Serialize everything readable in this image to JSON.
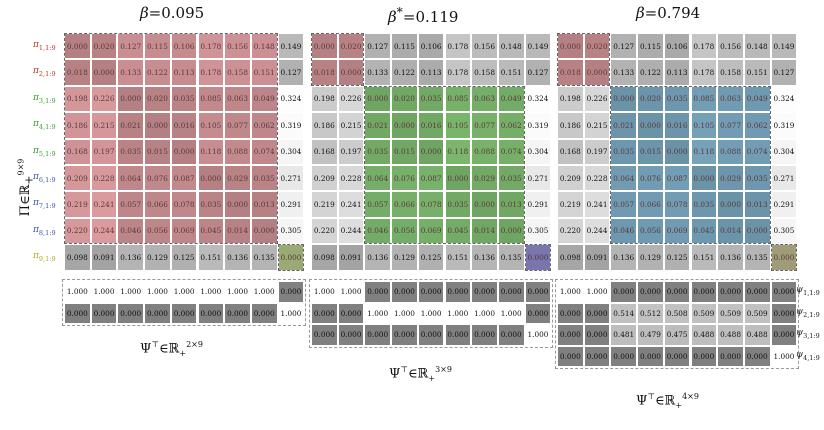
{
  "panels": [
    {
      "title_sym": "β",
      "title_star": "",
      "title_val": "=0.095",
      "psi_label_base": "Ψ",
      "psi_label_sup": "⊤",
      "psi_label_set": "∈ℝ",
      "psi_label_setsub": "+",
      "psi_label_setsup": "2×9",
      "psi": [
        [
          "1.000",
          "1.000",
          "1.000",
          "1.000",
          "1.000",
          "1.000",
          "1.000",
          "1.000",
          "0.000"
        ],
        [
          "0.000",
          "0.000",
          "0.000",
          "0.000",
          "0.000",
          "0.000",
          "0.000",
          "0.000",
          "1.000"
        ]
      ]
    },
    {
      "title_sym": "β",
      "title_star": "*",
      "title_val": "=0.119",
      "psi_label_base": "Ψ",
      "psi_label_sup": "⊤",
      "psi_label_set": "∈ℝ",
      "psi_label_setsub": "+",
      "psi_label_setsup": "3×9",
      "psi": [
        [
          "1.000",
          "1.000",
          "0.000",
          "0.000",
          "0.000",
          "0.000",
          "0.000",
          "0.000",
          "0.000"
        ],
        [
          "0.000",
          "0.000",
          "1.000",
          "1.000",
          "1.000",
          "1.000",
          "1.000",
          "1.000",
          "0.000"
        ],
        [
          "0.000",
          "0.000",
          "0.000",
          "0.000",
          "0.000",
          "0.000",
          "0.000",
          "0.000",
          "1.000"
        ]
      ]
    },
    {
      "title_sym": "β",
      "title_star": "",
      "title_val": "=0.794",
      "psi_label_base": "Ψ",
      "psi_label_sup": "⊤",
      "psi_label_set": "∈ℝ",
      "psi_label_setsub": "+",
      "psi_label_setsup": "4×9",
      "psi": [
        [
          "1.000",
          "1.000",
          "0.000",
          "0.000",
          "0.000",
          "0.000",
          "0.000",
          "0.000",
          "0.000"
        ],
        [
          "0.000",
          "0.000",
          "0.514",
          "0.512",
          "0.508",
          "0.509",
          "0.509",
          "0.509",
          "0.000"
        ],
        [
          "0.000",
          "0.000",
          "0.481",
          "0.479",
          "0.475",
          "0.488",
          "0.488",
          "0.488",
          "0.000"
        ],
        [
          "0.000",
          "0.000",
          "0.000",
          "0.000",
          "0.000",
          "0.000",
          "0.000",
          "0.000",
          "1.000"
        ]
      ]
    }
  ],
  "pi_matrix": [
    [
      "0.000",
      "0.020",
      "0.127",
      "0.115",
      "0.106",
      "0.178",
      "0.156",
      "0.148",
      "0.149"
    ],
    [
      "0.018",
      "0.000",
      "0.133",
      "0.122",
      "0.113",
      "0.178",
      "0.158",
      "0.151",
      "0.127"
    ],
    [
      "0.198",
      "0.226",
      "0.000",
      "0.020",
      "0.035",
      "0.085",
      "0.063",
      "0.049",
      "0.324"
    ],
    [
      "0.186",
      "0.215",
      "0.021",
      "0.000",
      "0.016",
      "0.105",
      "0.077",
      "0.062",
      "0.319"
    ],
    [
      "0.168",
      "0.197",
      "0.035",
      "0.015",
      "0.000",
      "0.118",
      "0.088",
      "0.074",
      "0.304"
    ],
    [
      "0.209",
      "0.228",
      "0.064",
      "0.076",
      "0.087",
      "0.000",
      "0.029",
      "0.035",
      "0.271"
    ],
    [
      "0.219",
      "0.241",
      "0.057",
      "0.066",
      "0.078",
      "0.035",
      "0.000",
      "0.013",
      "0.291"
    ],
    [
      "0.220",
      "0.244",
      "0.046",
      "0.056",
      "0.069",
      "0.045",
      "0.014",
      "0.000",
      "0.305"
    ],
    [
      "0.098",
      "0.091",
      "0.136",
      "0.129",
      "0.125",
      "0.151",
      "0.136",
      "0.135",
      "0.000"
    ]
  ],
  "row_labels": [
    {
      "base": "π",
      "sub": "1,1:9",
      "color": "#c0392b"
    },
    {
      "base": "π",
      "sub": "2,1:9",
      "color": "#c0392b"
    },
    {
      "base": "π",
      "sub": "3,1:9",
      "color": "#3aa02e"
    },
    {
      "base": "π",
      "sub": "4,1:9",
      "color": "#3aa02e"
    },
    {
      "base": "π",
      "sub": "5,1:9",
      "color": "#3aa02e"
    },
    {
      "base": "π",
      "sub": "6,1:9",
      "color": "#3a56b0"
    },
    {
      "base": "π",
      "sub": "7,1:9",
      "color": "#3a56b0"
    },
    {
      "base": "π",
      "sub": "8,1:9",
      "color": "#3a56b0"
    },
    {
      "base": "π",
      "sub": "9,1:9",
      "color": "#b5a71e"
    }
  ],
  "pi_axis_label": {
    "base": "Π∈ℝ",
    "sub": "+",
    "sup": "9×9"
  },
  "psi_row_labels": [
    {
      "base": "ψ",
      "sub": "1,1:9"
    },
    {
      "base": "ψ",
      "sub": "2,1:9"
    },
    {
      "base": "ψ",
      "sub": "3,1:9"
    },
    {
      "base": "ψ",
      "sub": "4,1:9"
    }
  ],
  "colors": {
    "red": "#e8a4a8",
    "green": "#8ed47e",
    "blue": "#88bcd8",
    "purple": "#9a96e0",
    "yellow_green": "#c6da96",
    "olive": "#cdc89a"
  }
}
